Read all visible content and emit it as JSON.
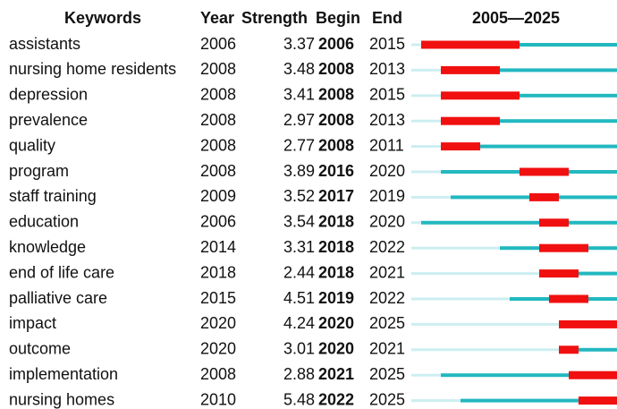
{
  "header": {
    "keyword": "Keywords",
    "year": "Year",
    "strength": "Strength",
    "begin": "Begin",
    "end": "End",
    "timeline": {
      "label": "2005—2025",
      "start": 2005,
      "end": 2025
    }
  },
  "rows": [
    {
      "keyword": "assistants",
      "year": 2006,
      "strength": 3.37,
      "begin": 2006,
      "end": 2015
    },
    {
      "keyword": "nursing home residents",
      "year": 2008,
      "strength": 3.48,
      "begin": 2008,
      "end": 2013
    },
    {
      "keyword": "depression",
      "year": 2008,
      "strength": 3.41,
      "begin": 2008,
      "end": 2015
    },
    {
      "keyword": "prevalence",
      "year": 2008,
      "strength": 2.97,
      "begin": 2008,
      "end": 2013
    },
    {
      "keyword": "quality",
      "year": 2008,
      "strength": 2.77,
      "begin": 2008,
      "end": 2011
    },
    {
      "keyword": "program",
      "year": 2008,
      "strength": 3.89,
      "begin": 2016,
      "end": 2020
    },
    {
      "keyword": "staff training",
      "year": 2009,
      "strength": 3.52,
      "begin": 2017,
      "end": 2019
    },
    {
      "keyword": "education",
      "year": 2006,
      "strength": 3.54,
      "begin": 2018,
      "end": 2020
    },
    {
      "keyword": "knowledge",
      "year": 2014,
      "strength": 3.31,
      "begin": 2018,
      "end": 2022
    },
    {
      "keyword": "end of life care",
      "year": 2018,
      "strength": 2.44,
      "begin": 2018,
      "end": 2021
    },
    {
      "keyword": "palliative care",
      "year": 2015,
      "strength": 4.51,
      "begin": 2019,
      "end": 2022
    },
    {
      "keyword": "impact",
      "year": 2020,
      "strength": 4.24,
      "begin": 2020,
      "end": 2025
    },
    {
      "keyword": "outcome",
      "year": 2020,
      "strength": 3.01,
      "begin": 2020,
      "end": 2021
    },
    {
      "keyword": "implementation",
      "year": 2008,
      "strength": 2.88,
      "begin": 2021,
      "end": 2025
    },
    {
      "keyword": "nursing homes",
      "year": 2010,
      "strength": 5.48,
      "begin": 2022,
      "end": 2025
    }
  ]
}
